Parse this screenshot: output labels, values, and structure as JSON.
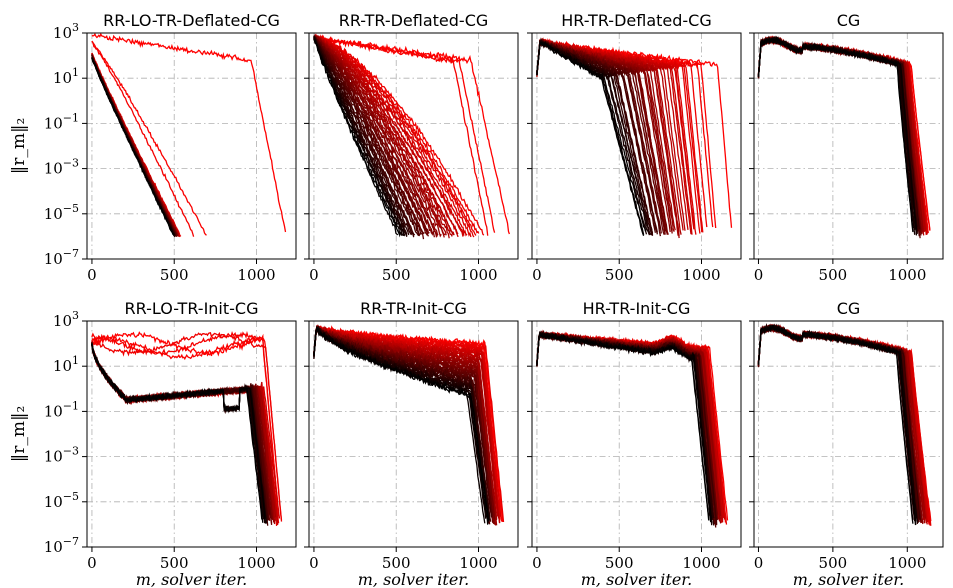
{
  "figure": {
    "xlabel": "m, solver iter.",
    "ylabel": "‖r_m‖₂"
  },
  "chart_data": [
    {
      "type": "line",
      "title": "RR-LO-TR-Deflated-CG",
      "xlim": [
        -30,
        1240
      ],
      "ylim": [
        1e-07,
        1000
      ],
      "yscale": "log",
      "x_ticks": [
        0,
        500,
        1000
      ],
      "y_ticks": [
        "10^3",
        "10^1",
        "10^-1",
        "10^-3",
        "10^-5",
        "10^-7"
      ],
      "grid": true,
      "series_count": 50,
      "color_gradient": [
        "#ff0000",
        "#000000"
      ],
      "curves_summary": "most curves start near 100 and converge to 1e-6 by ~500 iterations; a few red outliers end at ~620, ~700 and ~1180 iterations"
    },
    {
      "type": "line",
      "title": "RR-TR-Deflated-CG",
      "xlim": [
        -30,
        1240
      ],
      "ylim": [
        1e-07,
        1000
      ],
      "yscale": "log",
      "x_ticks": [
        0,
        500,
        1000
      ],
      "y_ticks": [
        "10^3",
        "10^1",
        "10^-1",
        "10^-3",
        "10^-5",
        "10^-7"
      ],
      "grid": true,
      "series_count": 50,
      "color_gradient": [
        "#ff0000",
        "#000000"
      ],
      "curves_summary": "curves start near 1000 and converge to 1e-6 between ~520 and ~1180 iterations"
    },
    {
      "type": "line",
      "title": "HR-TR-Deflated-CG",
      "xlim": [
        -30,
        1240
      ],
      "ylim": [
        1e-07,
        1000
      ],
      "yscale": "log",
      "x_ticks": [
        0,
        500,
        1000
      ],
      "y_ticks": [
        "10^3",
        "10^1",
        "10^-1",
        "10^-3",
        "10^-5",
        "10^-7"
      ],
      "grid": true,
      "series_count": 50,
      "color_gradient": [
        "#ff0000",
        "#000000"
      ],
      "curves_summary": "curves plateau near 100-500 and drop to 1e-6 between ~650 and ~1180 iterations"
    },
    {
      "type": "line",
      "title": "CG",
      "xlim": [
        -30,
        1240
      ],
      "ylim": [
        1e-07,
        1000
      ],
      "yscale": "log",
      "x_ticks": [
        0,
        500,
        1000
      ],
      "y_ticks": [
        "10^3",
        "10^1",
        "10^-1",
        "10^-3",
        "10^-5",
        "10^-7"
      ],
      "grid": true,
      "series_count": 50,
      "color_gradient": [
        "#ff0000",
        "#000000"
      ],
      "curves_summary": "all curves plateau near 300 and drop sharply to 1e-6 between ~1050 and ~1150 iterations"
    },
    {
      "type": "line",
      "title": "RR-LO-TR-Init-CG",
      "xlim": [
        -30,
        1240
      ],
      "ylim": [
        1e-07,
        1000
      ],
      "yscale": "log",
      "x_ticks": [
        0,
        500,
        1000
      ],
      "y_ticks": [
        "10^3",
        "10^1",
        "10^-1",
        "10^-3",
        "10^-5",
        "10^-7"
      ],
      "grid": true,
      "series_count": 50,
      "color_gradient": [
        "#ff0000",
        "#000000"
      ],
      "curves_summary": "curves drop from ~100 to ~0.3, plateau, then drop to 1e-6 near 1050-1150 iterations; a few red curves stay near 100"
    },
    {
      "type": "line",
      "title": "RR-TR-Init-CG",
      "xlim": [
        -30,
        1240
      ],
      "ylim": [
        1e-07,
        1000
      ],
      "yscale": "log",
      "x_ticks": [
        0,
        500,
        1000
      ],
      "y_ticks": [
        "10^3",
        "10^1",
        "10^-1",
        "10^-3",
        "10^-5",
        "10^-7"
      ],
      "grid": true,
      "series_count": 50,
      "color_gradient": [
        "#ff0000",
        "#000000"
      ],
      "curves_summary": "curves decrease from ~500 to between 0.3 and 100 then drop to 1e-6 near 1050-1150 iterations"
    },
    {
      "type": "line",
      "title": "HR-TR-Init-CG",
      "xlim": [
        -30,
        1240
      ],
      "ylim": [
        1e-07,
        1000
      ],
      "yscale": "log",
      "x_ticks": [
        0,
        500,
        1000
      ],
      "y_ticks": [
        "10^3",
        "10^1",
        "10^-1",
        "10^-3",
        "10^-5",
        "10^-7"
      ],
      "grid": true,
      "series_count": 50,
      "color_gradient": [
        "#ff0000",
        "#000000"
      ],
      "curves_summary": "curves plateau near 30-300 with a bump near 800 iterations then drop to 1e-6 near 1050-1150 iterations"
    },
    {
      "type": "line",
      "title": "CG",
      "xlim": [
        -30,
        1240
      ],
      "ylim": [
        1e-07,
        1000
      ],
      "yscale": "log",
      "x_ticks": [
        0,
        500,
        1000
      ],
      "y_ticks": [
        "10^3",
        "10^1",
        "10^-1",
        "10^-3",
        "10^-5",
        "10^-7"
      ],
      "grid": true,
      "series_count": 50,
      "color_gradient": [
        "#ff0000",
        "#000000"
      ],
      "curves_summary": "all curves plateau near 300 and drop sharply to 1e-6 between ~1050 and ~1150 iterations"
    }
  ]
}
